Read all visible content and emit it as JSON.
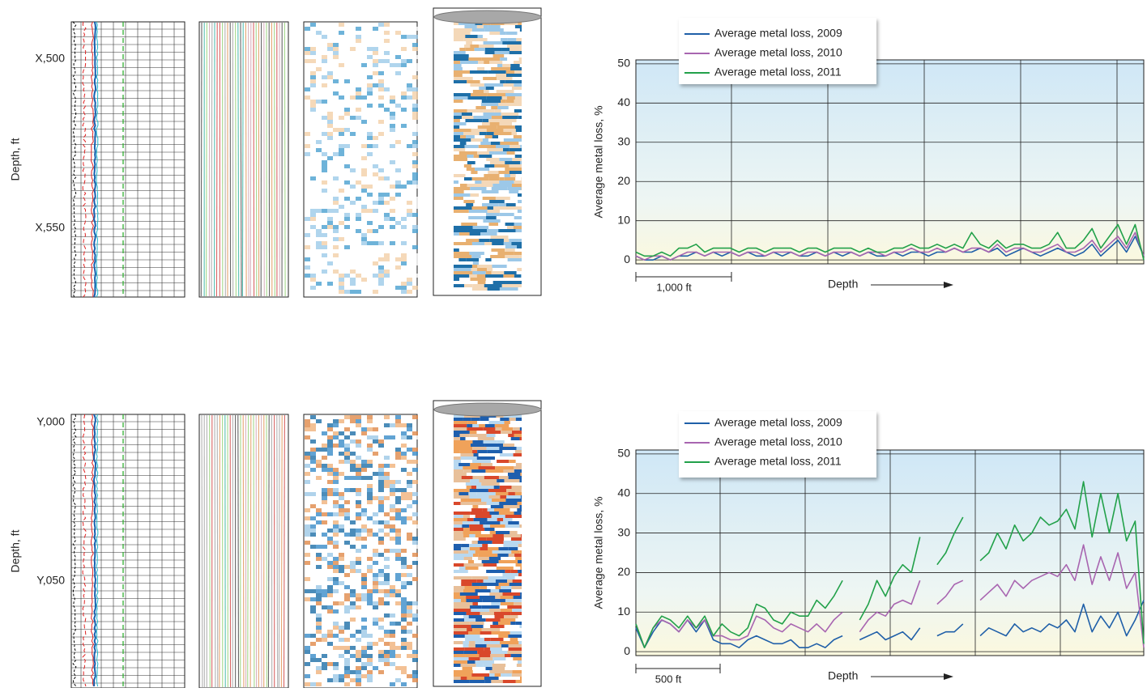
{
  "panels": [
    {
      "depth_label": "Depth, ft",
      "depth_ticks": [
        "X,500",
        "X,550"
      ]
    },
    {
      "depth_label": "Depth, ft",
      "depth_ticks": [
        "Y,000",
        "Y,050"
      ]
    }
  ],
  "chart_data": [
    {
      "type": "line",
      "ylabel": "Average metal loss, %",
      "xlabel": "Depth",
      "scale_label": "1,000 ft",
      "ylim": [
        -1,
        51
      ],
      "yticks": [
        0,
        10,
        20,
        30,
        40,
        50
      ],
      "grid": true,
      "series": [
        {
          "name": "Average metal loss, 2009",
          "color": "#1f5fa8",
          "values": [
            1,
            0,
            0,
            1,
            0,
            1,
            1,
            2,
            1,
            2,
            1,
            2,
            1,
            2,
            1,
            1,
            2,
            1,
            2,
            1,
            1,
            2,
            1,
            2,
            1,
            2,
            1,
            2,
            1,
            1,
            2,
            1,
            2,
            2,
            1,
            2,
            2,
            3,
            2,
            2,
            3,
            2,
            3,
            1,
            2,
            3,
            2,
            1,
            2,
            3,
            2,
            1,
            2,
            4,
            1,
            3,
            5,
            2,
            6,
            1
          ]
        },
        {
          "name": "Average metal loss, 2010",
          "color": "#a865b0",
          "values": [
            1,
            0,
            1,
            1,
            0,
            1,
            2,
            2,
            1,
            2,
            2,
            2,
            1,
            2,
            2,
            1,
            2,
            2,
            2,
            1,
            2,
            2,
            1,
            2,
            2,
            2,
            1,
            2,
            2,
            1,
            2,
            2,
            3,
            2,
            2,
            3,
            2,
            3,
            2,
            3,
            3,
            2,
            4,
            2,
            3,
            3,
            2,
            2,
            3,
            4,
            2,
            2,
            3,
            5,
            2,
            4,
            6,
            3,
            7,
            1
          ]
        },
        {
          "name": "Average metal loss, 2011",
          "color": "#22a14a",
          "values": [
            2,
            1,
            1,
            2,
            1,
            3,
            3,
            4,
            2,
            3,
            3,
            3,
            2,
            3,
            3,
            2,
            3,
            3,
            3,
            2,
            3,
            3,
            2,
            3,
            3,
            3,
            2,
            3,
            2,
            2,
            3,
            3,
            4,
            3,
            3,
            4,
            3,
            4,
            3,
            7,
            4,
            3,
            5,
            3,
            4,
            4,
            3,
            3,
            4,
            7,
            3,
            3,
            5,
            8,
            3,
            6,
            9,
            4,
            9,
            0
          ]
        }
      ]
    },
    {
      "type": "line",
      "ylabel": "Average metal loss, %",
      "xlabel": "Depth",
      "scale_label": "500 ft",
      "ylim": [
        -1,
        51
      ],
      "yticks": [
        0,
        10,
        20,
        30,
        40,
        50
      ],
      "grid": true,
      "series": [
        {
          "name": "Average metal loss, 2009",
          "color": "#1f5fa8",
          "values": [
            6,
            1,
            5,
            8,
            7,
            5,
            8,
            5,
            8,
            3,
            2,
            2,
            1,
            3,
            4,
            3,
            2,
            2,
            3,
            1,
            1,
            2,
            1,
            3,
            4,
            null,
            3,
            4,
            5,
            3,
            4,
            5,
            3,
            6,
            null,
            4,
            5,
            5,
            7,
            null,
            4,
            6,
            5,
            4,
            7,
            5,
            6,
            5,
            7,
            6,
            8,
            5,
            12,
            5,
            9,
            6,
            10,
            4,
            8,
            13
          ]
        },
        {
          "name": "Average metal loss, 2010",
          "color": "#a865b0",
          "values": [
            7,
            1,
            6,
            8,
            7,
            5,
            8,
            6,
            8,
            4,
            4,
            3,
            3,
            4,
            9,
            8,
            6,
            5,
            7,
            6,
            5,
            7,
            5,
            8,
            10,
            null,
            5,
            8,
            10,
            9,
            12,
            13,
            12,
            18,
            null,
            12,
            14,
            17,
            18,
            null,
            13,
            15,
            17,
            14,
            18,
            16,
            18,
            19,
            20,
            19,
            22,
            18,
            27,
            17,
            24,
            18,
            25,
            16,
            20,
            1
          ]
        },
        {
          "name": "Average metal loss, 2011",
          "color": "#22a14a",
          "values": [
            7,
            1,
            6,
            9,
            8,
            6,
            9,
            6,
            9,
            4,
            7,
            5,
            4,
            6,
            12,
            11,
            8,
            7,
            10,
            9,
            9,
            13,
            11,
            14,
            18,
            null,
            8,
            12,
            18,
            14,
            19,
            22,
            20,
            29,
            null,
            22,
            25,
            30,
            34,
            null,
            23,
            25,
            30,
            26,
            32,
            28,
            30,
            34,
            32,
            33,
            36,
            31,
            43,
            29,
            40,
            30,
            40,
            28,
            33,
            2
          ]
        }
      ]
    }
  ]
}
